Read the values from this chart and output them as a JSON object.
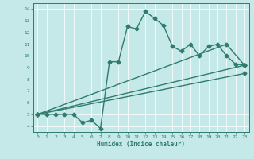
{
  "title": "",
  "xlabel": "Humidex (Indice chaleur)",
  "ylabel": "",
  "xlim": [
    -0.5,
    23.5
  ],
  "ylim": [
    3.5,
    14.5
  ],
  "xticks": [
    0,
    1,
    2,
    3,
    4,
    5,
    6,
    7,
    8,
    9,
    10,
    11,
    12,
    13,
    14,
    15,
    16,
    17,
    18,
    19,
    20,
    21,
    22,
    23
  ],
  "yticks": [
    4,
    5,
    6,
    7,
    8,
    9,
    10,
    11,
    12,
    13,
    14
  ],
  "bg_color": "#c5e8e8",
  "line_color": "#2f7b6e",
  "line1_x": [
    0,
    1,
    2,
    3,
    4,
    5,
    6,
    7,
    8,
    9,
    10,
    11,
    12,
    13,
    14,
    15,
    16,
    17,
    18,
    19,
    20,
    21,
    22,
    23
  ],
  "line1_y": [
    5.0,
    5.0,
    5.0,
    5.0,
    5.0,
    4.3,
    4.5,
    3.8,
    9.5,
    9.5,
    12.5,
    12.3,
    13.8,
    13.2,
    12.6,
    10.8,
    10.4,
    11.0,
    10.0,
    10.8,
    11.0,
    10.0,
    9.3,
    9.2
  ],
  "line2_x": [
    0,
    21,
    23
  ],
  "line2_y": [
    5.0,
    11.0,
    9.2
  ],
  "line3_x": [
    0,
    23
  ],
  "line3_y": [
    5.0,
    9.2
  ],
  "line4_x": [
    0,
    23
  ],
  "line4_y": [
    5.0,
    8.5
  ],
  "marker": "D",
  "markersize": 2.5,
  "linewidth": 1.0,
  "grid_color": "#aad4d4",
  "spine_color": "#2f7b6e"
}
